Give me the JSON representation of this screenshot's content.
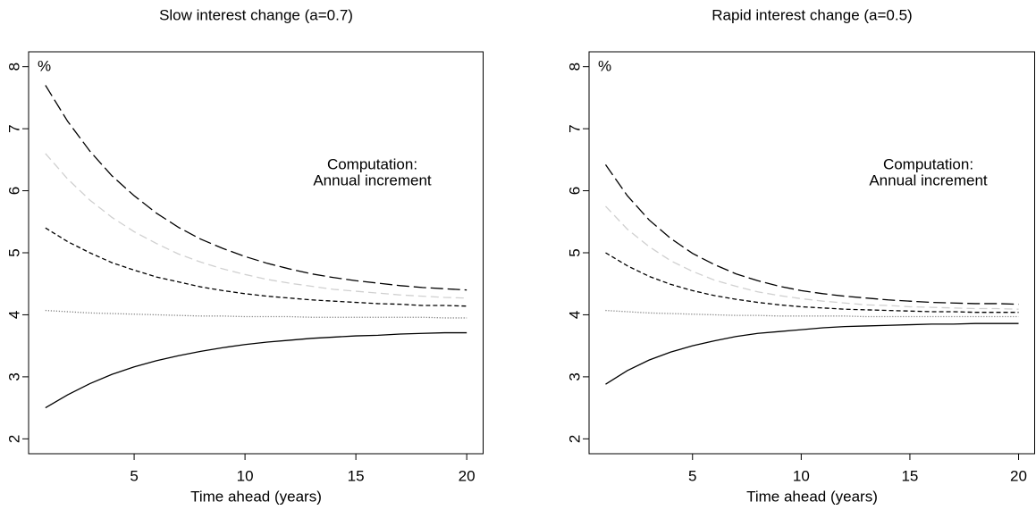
{
  "chart_data": [
    {
      "type": "line",
      "title": "Slow interest change (a=0.7)",
      "x_label": "Time ahead (years)",
      "annotations": [
        "%",
        "Computation:",
        "Annual increment"
      ],
      "x": [
        1,
        2,
        3,
        4,
        5,
        6,
        7,
        8,
        9,
        10,
        11,
        12,
        13,
        14,
        15,
        16,
        17,
        18,
        19,
        20
      ],
      "xlim": [
        0.24,
        20.76
      ],
      "xticks": [
        5,
        10,
        15,
        20
      ],
      "ylim": [
        1.76,
        8.24
      ],
      "yticks": [
        2,
        3,
        4,
        5,
        6,
        7,
        8
      ],
      "series": [
        {
          "color": "#000000",
          "linestyle": "longdash",
          "values": [
            7.7,
            7.12,
            6.64,
            6.24,
            5.92,
            5.64,
            5.41,
            5.22,
            5.07,
            4.94,
            4.83,
            4.74,
            4.66,
            4.6,
            4.55,
            4.51,
            4.47,
            4.44,
            4.42,
            4.4
          ]
        },
        {
          "color": "#d0d0d0",
          "linestyle": "dashed",
          "values": [
            6.6,
            6.19,
            5.85,
            5.57,
            5.34,
            5.15,
            4.98,
            4.85,
            4.74,
            4.65,
            4.57,
            4.51,
            4.46,
            4.41,
            4.38,
            4.35,
            4.32,
            4.3,
            4.28,
            4.27
          ]
        },
        {
          "color": "#000000",
          "linestyle": "shortdash",
          "values": [
            5.4,
            5.18,
            5.0,
            4.84,
            4.72,
            4.61,
            4.53,
            4.45,
            4.39,
            4.34,
            4.3,
            4.27,
            4.24,
            4.22,
            4.2,
            4.18,
            4.17,
            4.15,
            4.15,
            4.14
          ]
        },
        {
          "color": "#666666",
          "linestyle": "dotted",
          "values": [
            4.07,
            4.05,
            4.03,
            4.02,
            4.01,
            4.0,
            3.99,
            3.98,
            3.98,
            3.97,
            3.97,
            3.97,
            3.96,
            3.96,
            3.96,
            3.96,
            3.96,
            3.96,
            3.95,
            3.95
          ]
        },
        {
          "color": "#000000",
          "linestyle": "solid",
          "values": [
            2.5,
            2.71,
            2.89,
            3.04,
            3.16,
            3.26,
            3.34,
            3.41,
            3.47,
            3.52,
            3.56,
            3.59,
            3.62,
            3.64,
            3.66,
            3.67,
            3.69,
            3.7,
            3.71,
            3.71
          ]
        }
      ]
    },
    {
      "type": "line",
      "title": "Rapid interest change (a=0.5)",
      "x_label": "Time ahead (years)",
      "annotations": [
        "%",
        "Computation:",
        "Annual increment"
      ],
      "x": [
        1,
        2,
        3,
        4,
        5,
        6,
        7,
        8,
        9,
        10,
        11,
        12,
        13,
        14,
        15,
        16,
        17,
        18,
        19,
        20
      ],
      "xlim": [
        0.24,
        20.76
      ],
      "xticks": [
        5,
        10,
        15,
        20
      ],
      "ylim": [
        1.76,
        8.24
      ],
      "yticks": [
        2,
        3,
        4,
        5,
        6,
        7,
        8
      ],
      "series": [
        {
          "color": "#000000",
          "linestyle": "longdash",
          "values": [
            6.42,
            5.92,
            5.53,
            5.23,
            4.99,
            4.81,
            4.66,
            4.55,
            4.46,
            4.39,
            4.34,
            4.3,
            4.27,
            4.24,
            4.22,
            4.2,
            4.19,
            4.18,
            4.18,
            4.17
          ]
        },
        {
          "color": "#d0d0d0",
          "linestyle": "dashed",
          "values": [
            5.75,
            5.38,
            5.1,
            4.87,
            4.7,
            4.56,
            4.46,
            4.37,
            4.31,
            4.26,
            4.22,
            4.19,
            4.16,
            4.15,
            4.13,
            4.12,
            4.11,
            4.1,
            4.1,
            4.09
          ]
        },
        {
          "color": "#000000",
          "linestyle": "shortdash",
          "values": [
            5.0,
            4.79,
            4.62,
            4.49,
            4.39,
            4.31,
            4.25,
            4.2,
            4.16,
            4.13,
            4.11,
            4.09,
            4.08,
            4.07,
            4.06,
            4.05,
            4.05,
            4.04,
            4.04,
            4.04
          ]
        },
        {
          "color": "#666666",
          "linestyle": "dotted",
          "values": [
            4.07,
            4.05,
            4.03,
            4.02,
            4.01,
            4.0,
            3.99,
            3.99,
            3.98,
            3.98,
            3.98,
            3.98,
            3.97,
            3.97,
            3.97,
            3.97,
            3.97,
            3.97,
            3.97,
            3.97
          ]
        },
        {
          "color": "#000000",
          "linestyle": "solid",
          "values": [
            2.88,
            3.1,
            3.27,
            3.4,
            3.5,
            3.58,
            3.65,
            3.7,
            3.73,
            3.76,
            3.79,
            3.81,
            3.82,
            3.83,
            3.84,
            3.85,
            3.85,
            3.86,
            3.86,
            3.86
          ]
        }
      ]
    }
  ]
}
